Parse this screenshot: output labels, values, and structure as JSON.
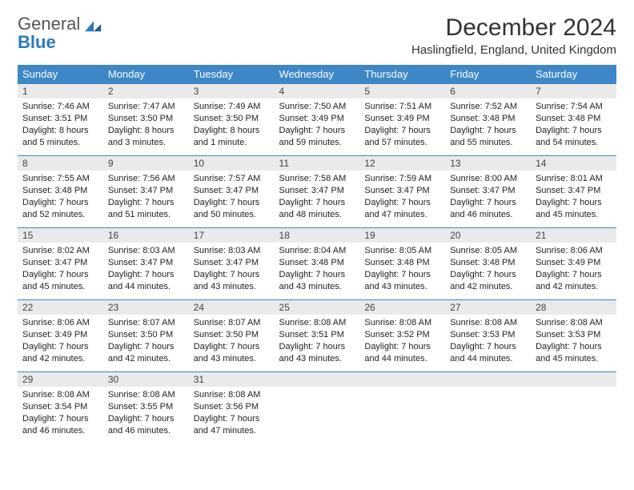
{
  "logo": {
    "line1": "General",
    "line2": "Blue"
  },
  "title": "December 2024",
  "subtitle": "Haslingfield, England, United Kingdom",
  "colors": {
    "header_bg": "#3d87c7",
    "header_fg": "#ffffff",
    "daynum_bg": "#eaeaea",
    "border": "#3d87c7",
    "logo_accent": "#2a7bbd"
  },
  "weekdays": [
    "Sunday",
    "Monday",
    "Tuesday",
    "Wednesday",
    "Thursday",
    "Friday",
    "Saturday"
  ],
  "weeks": [
    [
      {
        "n": "1",
        "sr": "7:46 AM",
        "ss": "3:51 PM",
        "dl": "8 hours and 5 minutes."
      },
      {
        "n": "2",
        "sr": "7:47 AM",
        "ss": "3:50 PM",
        "dl": "8 hours and 3 minutes."
      },
      {
        "n": "3",
        "sr": "7:49 AM",
        "ss": "3:50 PM",
        "dl": "8 hours and 1 minute."
      },
      {
        "n": "4",
        "sr": "7:50 AM",
        "ss": "3:49 PM",
        "dl": "7 hours and 59 minutes."
      },
      {
        "n": "5",
        "sr": "7:51 AM",
        "ss": "3:49 PM",
        "dl": "7 hours and 57 minutes."
      },
      {
        "n": "6",
        "sr": "7:52 AM",
        "ss": "3:48 PM",
        "dl": "7 hours and 55 minutes."
      },
      {
        "n": "7",
        "sr": "7:54 AM",
        "ss": "3:48 PM",
        "dl": "7 hours and 54 minutes."
      }
    ],
    [
      {
        "n": "8",
        "sr": "7:55 AM",
        "ss": "3:48 PM",
        "dl": "7 hours and 52 minutes."
      },
      {
        "n": "9",
        "sr": "7:56 AM",
        "ss": "3:47 PM",
        "dl": "7 hours and 51 minutes."
      },
      {
        "n": "10",
        "sr": "7:57 AM",
        "ss": "3:47 PM",
        "dl": "7 hours and 50 minutes."
      },
      {
        "n": "11",
        "sr": "7:58 AM",
        "ss": "3:47 PM",
        "dl": "7 hours and 48 minutes."
      },
      {
        "n": "12",
        "sr": "7:59 AM",
        "ss": "3:47 PM",
        "dl": "7 hours and 47 minutes."
      },
      {
        "n": "13",
        "sr": "8:00 AM",
        "ss": "3:47 PM",
        "dl": "7 hours and 46 minutes."
      },
      {
        "n": "14",
        "sr": "8:01 AM",
        "ss": "3:47 PM",
        "dl": "7 hours and 45 minutes."
      }
    ],
    [
      {
        "n": "15",
        "sr": "8:02 AM",
        "ss": "3:47 PM",
        "dl": "7 hours and 45 minutes."
      },
      {
        "n": "16",
        "sr": "8:03 AM",
        "ss": "3:47 PM",
        "dl": "7 hours and 44 minutes."
      },
      {
        "n": "17",
        "sr": "8:03 AM",
        "ss": "3:47 PM",
        "dl": "7 hours and 43 minutes."
      },
      {
        "n": "18",
        "sr": "8:04 AM",
        "ss": "3:48 PM",
        "dl": "7 hours and 43 minutes."
      },
      {
        "n": "19",
        "sr": "8:05 AM",
        "ss": "3:48 PM",
        "dl": "7 hours and 43 minutes."
      },
      {
        "n": "20",
        "sr": "8:05 AM",
        "ss": "3:48 PM",
        "dl": "7 hours and 42 minutes."
      },
      {
        "n": "21",
        "sr": "8:06 AM",
        "ss": "3:49 PM",
        "dl": "7 hours and 42 minutes."
      }
    ],
    [
      {
        "n": "22",
        "sr": "8:06 AM",
        "ss": "3:49 PM",
        "dl": "7 hours and 42 minutes."
      },
      {
        "n": "23",
        "sr": "8:07 AM",
        "ss": "3:50 PM",
        "dl": "7 hours and 42 minutes."
      },
      {
        "n": "24",
        "sr": "8:07 AM",
        "ss": "3:50 PM",
        "dl": "7 hours and 43 minutes."
      },
      {
        "n": "25",
        "sr": "8:08 AM",
        "ss": "3:51 PM",
        "dl": "7 hours and 43 minutes."
      },
      {
        "n": "26",
        "sr": "8:08 AM",
        "ss": "3:52 PM",
        "dl": "7 hours and 44 minutes."
      },
      {
        "n": "27",
        "sr": "8:08 AM",
        "ss": "3:53 PM",
        "dl": "7 hours and 44 minutes."
      },
      {
        "n": "28",
        "sr": "8:08 AM",
        "ss": "3:53 PM",
        "dl": "7 hours and 45 minutes."
      }
    ],
    [
      {
        "n": "29",
        "sr": "8:08 AM",
        "ss": "3:54 PM",
        "dl": "7 hours and 46 minutes."
      },
      {
        "n": "30",
        "sr": "8:08 AM",
        "ss": "3:55 PM",
        "dl": "7 hours and 46 minutes."
      },
      {
        "n": "31",
        "sr": "8:08 AM",
        "ss": "3:56 PM",
        "dl": "7 hours and 47 minutes."
      },
      null,
      null,
      null,
      null
    ]
  ],
  "labels": {
    "sunrise": "Sunrise: ",
    "sunset": "Sunset: ",
    "daylight": "Daylight: "
  }
}
